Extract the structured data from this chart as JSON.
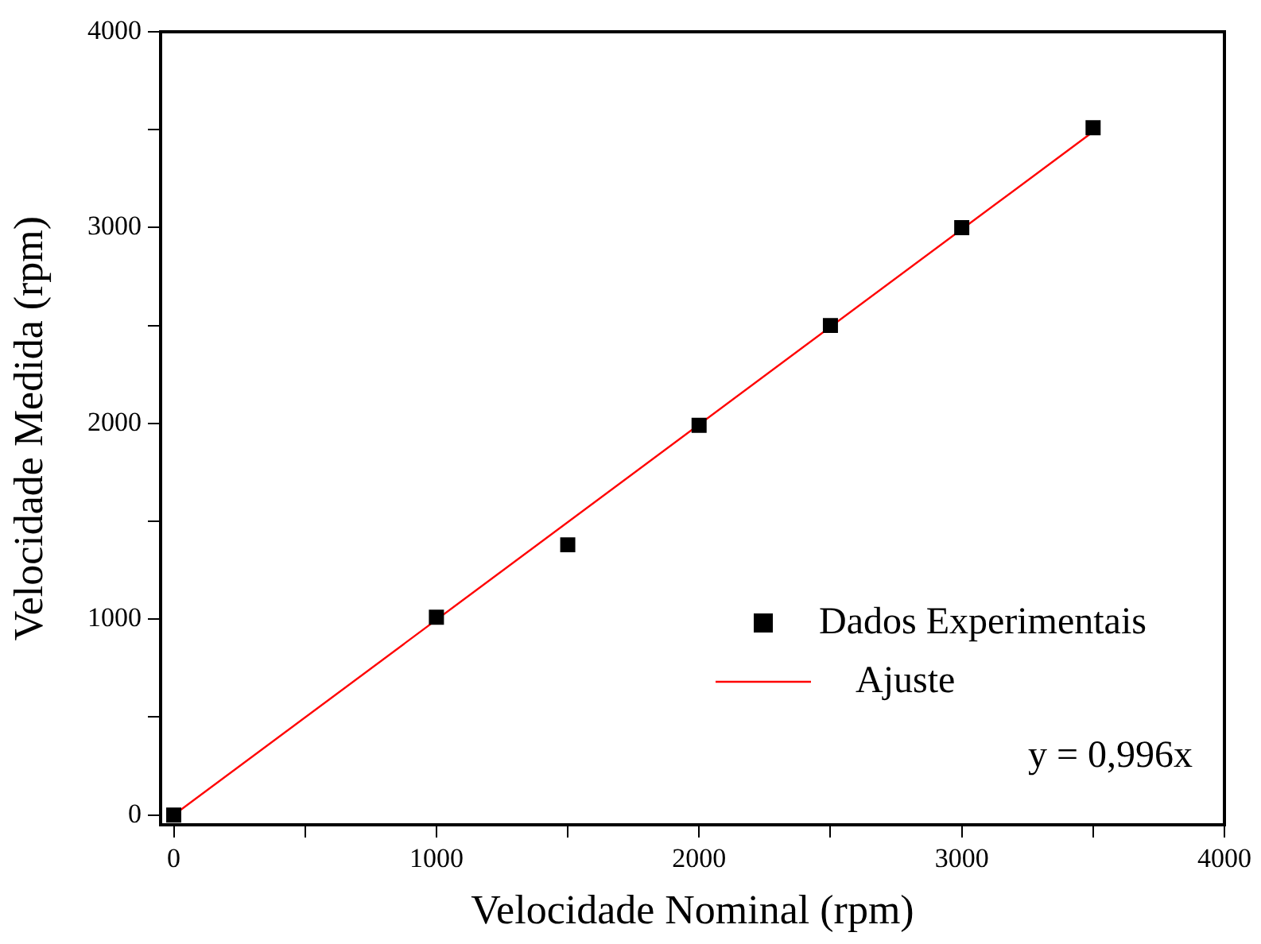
{
  "chart_data": {
    "type": "scatter",
    "xlabel": "Velocidade Nominal (rpm)",
    "ylabel": "Velocidade Medida (rpm)",
    "xlim": [
      -50,
      4000
    ],
    "ylim": [
      -50,
      4000
    ],
    "xticks": [
      0,
      {
        "value": 500,
        "label": null
      },
      1000,
      {
        "value": 1500,
        "label": null
      },
      2000,
      {
        "value": 2500,
        "label": null
      },
      3000,
      {
        "value": 3500,
        "label": null
      },
      4000
    ],
    "yticks": [
      0,
      {
        "value": 500,
        "label": null
      },
      1000,
      {
        "value": 1500,
        "label": null
      },
      2000,
      {
        "value": 2500,
        "label": null
      },
      3000,
      {
        "value": 3500,
        "label": null
      },
      4000
    ],
    "grid": false,
    "legend": "bottom right",
    "annotations": [
      "y = 0,996x"
    ],
    "series": [
      {
        "name": "Dados Experimentais",
        "type": "scatter",
        "marker": "square",
        "color": "#000000",
        "x": [
          0,
          1000,
          1500,
          2000,
          2500,
          3000,
          3500
        ],
        "values": [
          0,
          1010,
          1380,
          1990,
          2500,
          3000,
          3510
        ]
      },
      {
        "name": "Ajuste",
        "type": "line",
        "color": "#ff0000",
        "line_style": "solid",
        "x": [
          0,
          3500
        ],
        "values": [
          0,
          3490
        ]
      }
    ]
  }
}
